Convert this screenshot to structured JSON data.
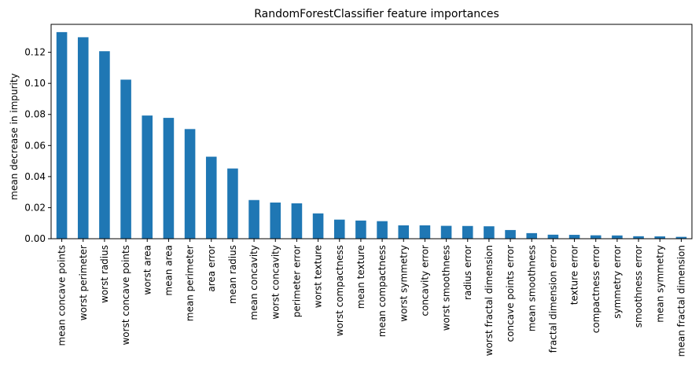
{
  "chart_data": {
    "type": "bar",
    "title": "RandomForestClassifier feature importances",
    "xlabel": "",
    "ylabel": "mean decrease in impurity",
    "ylim": [
      0,
      0.138
    ],
    "yticks": [
      0.0,
      0.02,
      0.04,
      0.06,
      0.08,
      0.1,
      0.12
    ],
    "ytick_labels": [
      "0.00",
      "0.02",
      "0.04",
      "0.06",
      "0.08",
      "0.10",
      "0.12"
    ],
    "grid": false,
    "bar_color": "#1f77b4",
    "categories": [
      "mean concave points",
      "worst perimeter",
      "worst radius",
      "worst concave points",
      "worst area",
      "mean area",
      "mean perimeter",
      "area error",
      "mean radius",
      "mean concavity",
      "worst concavity",
      "perimeter error",
      "worst texture",
      "worst compactness",
      "mean texture",
      "mean compactness",
      "worst symmetry",
      "concavity error",
      "worst smoothness",
      "radius error",
      "worst fractal dimension",
      "concave points error",
      "mean smoothness",
      "fractal dimension error",
      "texture error",
      "compactness error",
      "symmetry error",
      "smoothness error",
      "mean symmetry",
      "mean fractal dimension"
    ],
    "values": [
      0.133,
      0.1297,
      0.1207,
      0.1024,
      0.0793,
      0.0778,
      0.0706,
      0.0528,
      0.0452,
      0.0249,
      0.0233,
      0.0228,
      0.0163,
      0.0123,
      0.0117,
      0.0113,
      0.0086,
      0.0086,
      0.0083,
      0.0082,
      0.008,
      0.0056,
      0.0036,
      0.0026,
      0.0025,
      0.0022,
      0.0021,
      0.0016,
      0.0015,
      0.0012
    ]
  }
}
